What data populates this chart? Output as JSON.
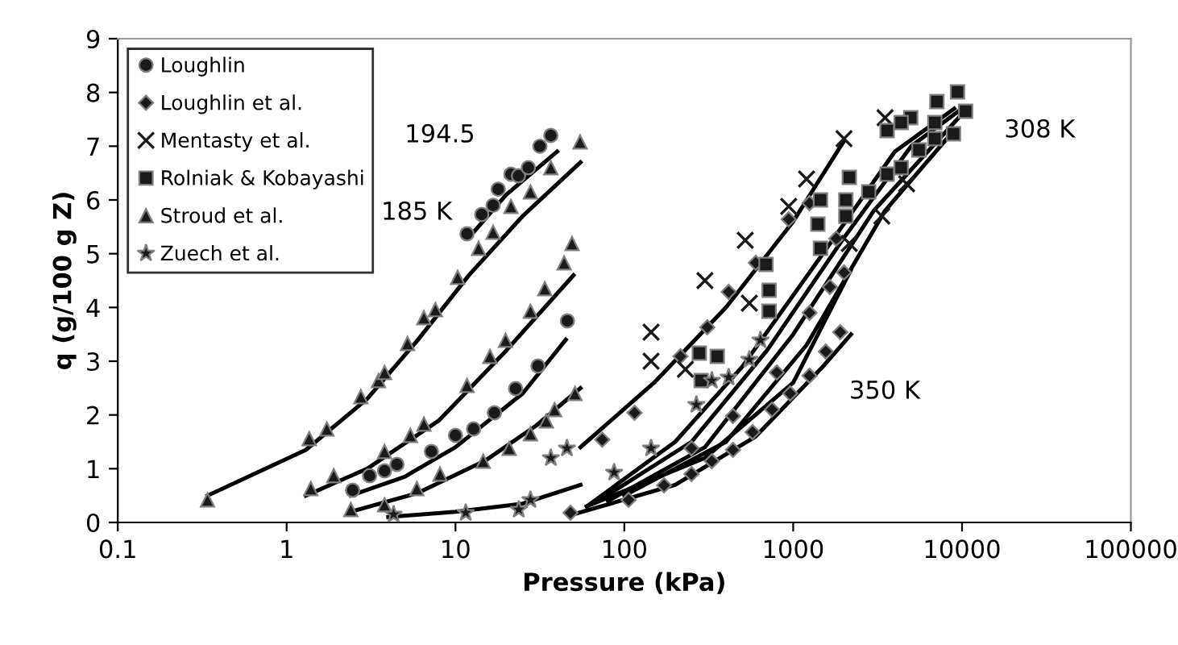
{
  "chart_data": {
    "type": "scatter",
    "xlabel": "Pressure (kPa)",
    "ylabel": "q (g/100 g Z)",
    "log": "x",
    "xlim": [
      0.1,
      100000
    ],
    "xticks": [
      0.1,
      1,
      10,
      100,
      1000,
      10000,
      100000
    ],
    "ylim": [
      0,
      9
    ],
    "yticks": [
      0,
      1,
      2,
      3,
      4,
      5,
      6,
      7,
      8,
      9
    ],
    "grid": false,
    "legend": "top left",
    "annotations": [
      "185 K",
      "194.5",
      "308 K",
      "350 K"
    ],
    "series": [
      {
        "name": "Loughlin",
        "type": "scatter",
        "marker": "circle",
        "color": "#1a1a1a",
        "x": [
          11.7,
          14.3,
          16.7,
          17.9,
          21.3,
          23.6,
          27,
          31.6,
          36.7,
          2.46,
          3.1,
          3.8,
          4.5,
          7.2,
          10,
          12.8,
          17,
          22.7,
          30.8,
          46
        ],
        "values": [
          5.37,
          5.73,
          5.9,
          6.2,
          6.48,
          6.45,
          6.6,
          7.0,
          7.2,
          0.6,
          0.87,
          0.96,
          1.08,
          1.32,
          1.62,
          1.74,
          2.04,
          2.49,
          2.91,
          3.75
        ]
      },
      {
        "name": "Loughlin et al.",
        "type": "scatter",
        "marker": "diamond",
        "color": "#1a1a1a",
        "x": [
          48,
          106,
          172,
          250,
          330,
          440,
          575,
          750,
          960,
          1250,
          1560,
          1900,
          250,
          440,
          800,
          1250,
          1650,
          2000,
          74,
          115,
          215,
          310,
          415,
          600,
          940,
          1250,
          1800
        ],
        "values": [
          0.18,
          0.42,
          0.69,
          0.9,
          1.14,
          1.35,
          1.68,
          2.1,
          2.4,
          2.73,
          3.18,
          3.54,
          1.38,
          1.98,
          2.79,
          3.9,
          4.38,
          4.65,
          1.54,
          2.04,
          3.09,
          3.63,
          4.29,
          4.83,
          5.64,
          5.94,
          5.28
        ]
      },
      {
        "name": "Mentasty et al.",
        "type": "scatter",
        "marker": "cross",
        "color": "#1a1a1a",
        "x": [
          144,
          144,
          230,
          300,
          520,
          940,
          1200,
          2000,
          3500,
          4700,
          3350,
          2150,
          550
        ],
        "values": [
          3.54,
          3.0,
          2.85,
          4.5,
          5.25,
          5.88,
          6.39,
          7.14,
          7.53,
          6.3,
          5.7,
          5.19,
          4.08
        ]
      },
      {
        "name": "Rolniak & Kobayashi",
        "type": "scatter",
        "marker": "square",
        "color": "#1a1a1a",
        "x": [
          9400,
          7100,
          10500,
          8900,
          4970,
          4360,
          3600,
          6900,
          6900,
          5560,
          4360,
          3600,
          2800,
          2150,
          2050,
          2050,
          1450,
          1400,
          1450,
          690,
          720,
          720,
          355,
          285,
          278
        ],
        "values": [
          8.01,
          7.83,
          7.65,
          7.23,
          7.53,
          7.44,
          7.29,
          7.44,
          7.14,
          6.93,
          6.6,
          6.48,
          6.15,
          6.42,
          6.0,
          5.7,
          6.0,
          5.55,
          5.1,
          4.8,
          4.32,
          3.93,
          3.09,
          2.64,
          3.15
        ]
      },
      {
        "name": "Stroud et al.",
        "type": "scatter",
        "marker": "triangle",
        "color": "#1a1a1a",
        "x": [
          0.34,
          1.36,
          1.73,
          2.75,
          3.5,
          3.8,
          5.2,
          6.5,
          7.6,
          10.3,
          13.7,
          16.7,
          21.3,
          27.8,
          36.7,
          54.7,
          1.39,
          1.9,
          3.8,
          5.4,
          6.5,
          11.7,
          16,
          19.8,
          27.8,
          33.8,
          44,
          49,
          3.8,
          5.9,
          8.1,
          14.6,
          20.8,
          27.8,
          34.5,
          38.6,
          51,
          2.4
        ],
        "values": [
          0.42,
          1.56,
          1.74,
          2.34,
          2.64,
          2.79,
          3.33,
          3.81,
          3.96,
          4.56,
          5.1,
          5.4,
          5.88,
          6.15,
          6.6,
          7.08,
          0.63,
          0.87,
          1.32,
          1.62,
          1.83,
          2.55,
          3.09,
          3.39,
          3.93,
          4.35,
          4.83,
          5.19,
          0.33,
          0.63,
          0.9,
          1.14,
          1.38,
          1.65,
          1.89,
          2.1,
          2.4,
          0.24
        ]
      },
      {
        "name": "Zuech et al.",
        "type": "scatter",
        "marker": "star",
        "color": "#1a1a1a",
        "x": [
          4.3,
          11.5,
          23.7,
          27.8,
          36.7,
          45.7,
          87,
          144,
          267,
          330,
          415,
          550,
          640
        ],
        "values": [
          0.15,
          0.18,
          0.24,
          0.42,
          1.2,
          1.38,
          0.93,
          1.38,
          2.19,
          2.64,
          2.7,
          3.03,
          3.39
        ]
      },
      {
        "type": "line",
        "marker": "none",
        "line_style": "solid",
        "color": "#000000",
        "x": [
          0.34,
          1.3,
          3,
          6,
          12,
          25,
          55
        ],
        "values": [
          0.5,
          1.35,
          2.3,
          3.4,
          4.6,
          5.7,
          6.7
        ]
      },
      {
        "type": "line",
        "marker": "none",
        "line_style": "solid",
        "color": "#000000",
        "x": [
          12,
          20,
          40
        ],
        "values": [
          5.3,
          6.1,
          6.9
        ]
      },
      {
        "type": "line",
        "marker": "none",
        "line_style": "solid",
        "color": "#000000",
        "x": [
          1.3,
          3,
          8,
          20,
          50
        ],
        "values": [
          0.5,
          1.0,
          1.9,
          3.2,
          4.6
        ]
      },
      {
        "type": "line",
        "marker": "none",
        "line_style": "solid",
        "color": "#000000",
        "x": [
          2.4,
          5,
          10,
          25,
          45
        ],
        "values": [
          0.5,
          0.85,
          1.4,
          2.4,
          3.4
        ]
      },
      {
        "type": "line",
        "marker": "none",
        "line_style": "solid",
        "color": "#000000",
        "x": [
          2.4,
          6,
          15,
          30,
          55
        ],
        "values": [
          0.2,
          0.55,
          1.15,
          1.8,
          2.5
        ]
      },
      {
        "type": "line",
        "marker": "none",
        "line_style": "solid",
        "color": "#000000",
        "x": [
          4,
          10,
          25,
          55
        ],
        "values": [
          0.1,
          0.2,
          0.35,
          0.7
        ]
      },
      {
        "type": "line",
        "marker": "none",
        "line_style": "solid",
        "color": "#000000",
        "x": [
          55,
          150,
          400,
          1000,
          2000
        ],
        "values": [
          1.4,
          2.6,
          4.0,
          5.6,
          7.1
        ]
      },
      {
        "type": "line",
        "marker": "none",
        "line_style": "solid",
        "color": "#000000",
        "x": [
          60,
          200,
          500,
          1500,
          4000,
          9000
        ],
        "values": [
          0.3,
          1.5,
          2.9,
          5.0,
          6.9,
          7.7
        ]
      },
      {
        "type": "line",
        "marker": "none",
        "line_style": "solid",
        "color": "#000000",
        "x": [
          70,
          250,
          700,
          2000,
          5000,
          10000
        ],
        "values": [
          0.4,
          1.5,
          3.2,
          5.3,
          7.0,
          7.7
        ]
      },
      {
        "type": "line",
        "marker": "none",
        "line_style": "solid",
        "color": "#000000",
        "x": [
          80,
          300,
          1000,
          3000,
          10000
        ],
        "values": [
          0.4,
          1.4,
          3.5,
          5.8,
          7.6
        ]
      },
      {
        "type": "line",
        "marker": "none",
        "line_style": "solid",
        "color": "#000000",
        "x": [
          100,
          400,
          1200,
          3500,
          9000
        ],
        "values": [
          0.5,
          1.5,
          3.3,
          5.8,
          7.3
        ]
      },
      {
        "type": "line",
        "marker": "none",
        "line_style": "solid",
        "color": "#000000",
        "x": [
          60,
          300,
          1000,
          2200
        ],
        "values": [
          0.3,
          1.2,
          2.6,
          4.7
        ]
      },
      {
        "type": "line",
        "marker": "none",
        "line_style": "solid",
        "color": "#000000",
        "x": [
          50,
          200,
          600,
          1500,
          2200
        ],
        "values": [
          0.15,
          0.7,
          1.6,
          2.9,
          3.5
        ]
      }
    ]
  }
}
